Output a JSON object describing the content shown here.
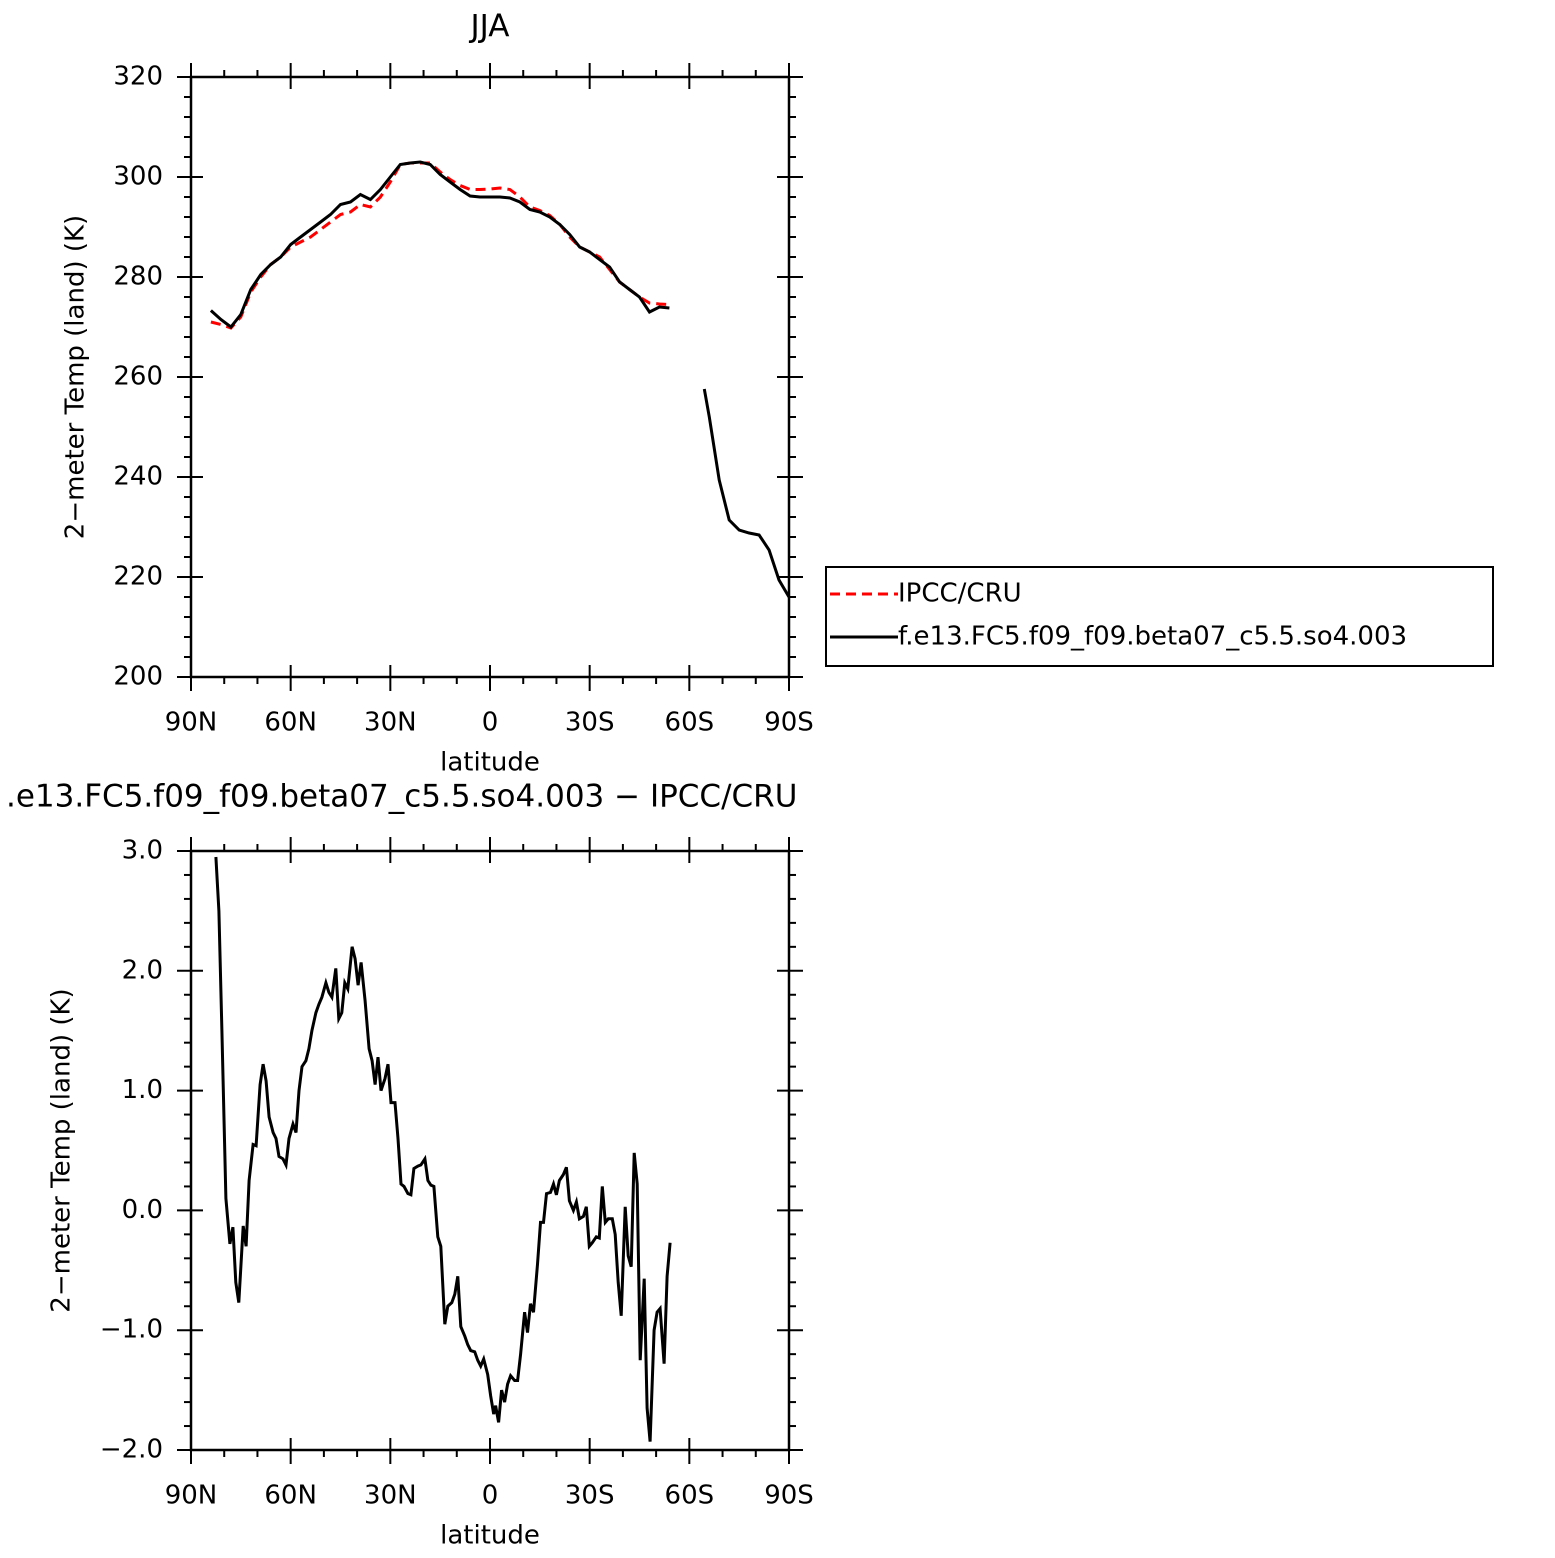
{
  "chart_data": [
    {
      "type": "line",
      "title": "JJA",
      "xlabel": "latitude",
      "ylabel": "2−meter Temp (land) (K)",
      "legend": "right",
      "xlim": [
        90,
        -90
      ],
      "xticks": [
        {
          "value": 90,
          "label": "90N"
        },
        {
          "value": 60,
          "label": "60N"
        },
        {
          "value": 30,
          "label": "30N"
        },
        0,
        {
          "value": -30,
          "label": "30S"
        },
        {
          "value": -60,
          "label": "60S"
        },
        {
          "value": -90,
          "label": "90S"
        }
      ],
      "ylim": [
        200,
        320
      ],
      "yticks": [
        200,
        220,
        240,
        260,
        280,
        300,
        320
      ],
      "x": [
        84,
        81,
        78,
        75,
        72,
        69,
        66,
        63,
        60,
        57,
        54,
        51,
        48,
        45,
        42,
        39,
        36,
        33,
        30,
        27,
        24,
        21,
        18,
        15,
        12,
        9,
        6,
        3,
        0,
        -3,
        -6,
        -9,
        -12,
        -15,
        -18,
        -21,
        -24,
        -27,
        -30,
        -33,
        -36,
        -39,
        -42,
        -45,
        -48,
        -51,
        -54,
        -57,
        -60,
        -63,
        -64.5,
        -66,
        -69,
        -72,
        -75,
        -78,
        -81,
        -84,
        -87,
        -90
      ],
      "series": [
        {
          "name": "IPCC/CRU",
          "color": "#ff0000",
          "style": "dashed",
          "values": [
            271.0,
            270.5,
            269.8,
            272.0,
            277.0,
            280.0,
            282.5,
            284.0,
            286.0,
            287.0,
            288.0,
            289.5,
            291.0,
            292.5,
            293.0,
            294.5,
            294.0,
            296.0,
            299.0,
            302.5,
            302.8,
            302.8,
            302.8,
            301.0,
            299.5,
            298.3,
            297.5,
            297.5,
            297.6,
            297.8,
            297.5,
            296.0,
            294.0,
            293.3,
            292.3,
            290.5,
            288.0,
            286.0,
            285.0,
            284.0,
            281.5,
            279.0,
            277.5,
            276.0,
            274.8,
            274.6,
            274.5,
            null,
            null,
            null,
            null,
            null,
            null,
            null,
            null,
            null,
            null,
            null,
            null,
            null
          ]
        },
        {
          "name": "f.e13.FC5.f09_f09.beta07_c5.5.so4.003",
          "color": "#000000",
          "style": "solid",
          "values": [
            273.3,
            271.5,
            270.0,
            272.5,
            277.5,
            280.5,
            282.5,
            284.0,
            286.5,
            288.0,
            289.5,
            291.0,
            292.5,
            294.5,
            295.0,
            296.5,
            295.5,
            297.5,
            300.0,
            302.5,
            302.8,
            303.0,
            302.5,
            300.5,
            299.0,
            297.5,
            296.2,
            296.0,
            296.0,
            296.0,
            295.8,
            295.0,
            293.5,
            293.0,
            292.0,
            290.5,
            288.5,
            286.0,
            285.0,
            283.5,
            282.0,
            279.0,
            277.5,
            276.0,
            273.0,
            274.0,
            273.8,
            null,
            null,
            null,
            257.6,
            252.0,
            239.4,
            231.4,
            229.4,
            228.8,
            228.4,
            225.4,
            219.4,
            216.0
          ]
        }
      ]
    },
    {
      "type": "line",
      "title": ".e13.FC5.f09_f09.beta07_c5.5.so4.003 − IPCC/CRU",
      "xlabel": "latitude",
      "ylabel": "2−meter Temp (land) (K)",
      "xlim": [
        90,
        -90
      ],
      "xticks": [
        {
          "value": 90,
          "label": "90N"
        },
        {
          "value": 60,
          "label": "60N"
        },
        {
          "value": 30,
          "label": "30N"
        },
        0,
        {
          "value": -30,
          "label": "30S"
        },
        {
          "value": -60,
          "label": "60S"
        },
        {
          "value": -90,
          "label": "90S"
        }
      ],
      "ylim": [
        -2,
        3
      ],
      "yticks": [
        {
          "value": -2,
          "label": "−2.0"
        },
        {
          "value": -1,
          "label": "−1.0"
        },
        {
          "value": 0,
          "label": "0.0"
        },
        {
          "value": 1,
          "label": "1.0"
        },
        {
          "value": 2,
          "label": "2.0"
        },
        {
          "value": 3,
          "label": "3.0"
        }
      ],
      "x": [
        82.5,
        81.6,
        80.7,
        79.5,
        78.3,
        77.4,
        76.5,
        75.6,
        74.3,
        73.4,
        72.5,
        71.3,
        70.4,
        69.2,
        68.3,
        67.4,
        66.5,
        65.3,
        64.4,
        63.5,
        62.3,
        61.4,
        60.5,
        59.3,
        58.4,
        57.5,
        56.6,
        55.4,
        54.5,
        53.6,
        52.4,
        51.5,
        50.6,
        49.4,
        48.5,
        47.6,
        46.4,
        45.5,
        44.6,
        43.7,
        42.8,
        41.5,
        40.6,
        39.7,
        38.8,
        37.6,
        36.4,
        35.5,
        34.6,
        33.7,
        32.8,
        31.6,
        30.7,
        29.8,
        28.6,
        27.7,
        26.8,
        25.9,
        24.7,
        23.8,
        22.9,
        21.7,
        20.8,
        19.6,
        18.7,
        17.8,
        16.9,
        15.7,
        14.8,
        13.6,
        12.7,
        11.5,
        10.6,
        9.7,
        8.8,
        7.6,
        6.7,
        5.8,
        4.6,
        3.7,
        2.8,
        1.9,
        0.7,
        -0.2,
        -1.1,
        -1.7,
        -2.6,
        -3.5,
        -4.4,
        -5.3,
        -6.2,
        -7.4,
        -8.3,
        -9.2,
        -10.4,
        -11.3,
        -12.2,
        -13.1,
        -14.3,
        -15.2,
        -16.1,
        -17.0,
        -18.2,
        -19.1,
        -20.0,
        -20.9,
        -22.1,
        -23.0,
        -23.9,
        -25.1,
        -26.0,
        -26.9,
        -28.1,
        -29.0,
        -29.9,
        -30.8,
        -32.0,
        -32.9,
        -33.8,
        -34.7,
        -35.6,
        -36.8,
        -37.7,
        -38.6,
        -39.5,
        -40.7,
        -41.6,
        -42.5,
        -43.4,
        -44.3,
        -45.2,
        -46.4,
        -47.3,
        -48.2,
        -49.4,
        -50.3,
        -51.2,
        -52.4,
        -53.3,
        -54.2
      ],
      "color": "#000000",
      "values": [
        2.95,
        2.5,
        1.5,
        0.1,
        -0.28,
        -0.14,
        -0.6,
        -0.77,
        -0.13,
        -0.3,
        0.25,
        0.55,
        0.54,
        1.05,
        1.22,
        1.08,
        0.78,
        0.65,
        0.6,
        0.45,
        0.43,
        0.38,
        0.6,
        0.72,
        0.65,
        1.0,
        1.2,
        1.25,
        1.35,
        1.5,
        1.65,
        1.72,
        1.78,
        1.9,
        1.82,
        1.78,
        2.02,
        1.6,
        1.65,
        1.9,
        1.85,
        2.2,
        2.1,
        1.88,
        2.07,
        1.75,
        1.35,
        1.25,
        1.05,
        1.28,
        1.0,
        1.1,
        1.22,
        0.9,
        0.9,
        0.6,
        0.22,
        0.2,
        0.14,
        0.13,
        0.35,
        0.37,
        0.38,
        0.43,
        0.25,
        0.21,
        0.2,
        -0.22,
        -0.3,
        -0.95,
        -0.8,
        -0.77,
        -0.7,
        -0.55,
        -0.97,
        -1.05,
        -1.12,
        -1.17,
        -1.18,
        -1.25,
        -1.3,
        -1.24,
        -1.37,
        -1.55,
        -1.7,
        -1.63,
        -1.77,
        -1.5,
        -1.6,
        -1.45,
        -1.38,
        -1.42,
        -1.42,
        -1.2,
        -0.85,
        -1.02,
        -0.78,
        -0.85,
        -0.45,
        -0.1,
        -0.1,
        0.14,
        0.15,
        0.22,
        0.13,
        0.25,
        0.3,
        0.36,
        0.08,
        0.0,
        0.07,
        -0.07,
        -0.05,
        0.03,
        -0.3,
        -0.27,
        -0.22,
        -0.23,
        0.2,
        -0.1,
        -0.07,
        -0.07,
        -0.2,
        -0.6,
        -0.88,
        0.03,
        -0.38,
        -0.47,
        0.48,
        0.22,
        -1.25,
        -0.57,
        -1.65,
        -1.93,
        -1.0,
        -0.85,
        -0.82,
        -1.28,
        -0.55,
        -0.27
      ]
    }
  ]
}
